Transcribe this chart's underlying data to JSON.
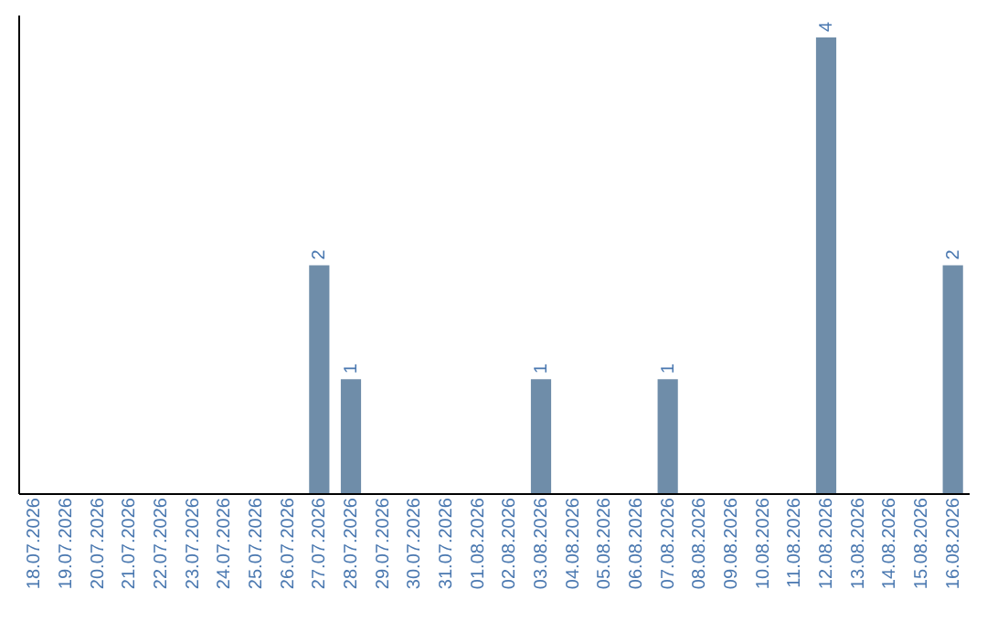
{
  "chart_data": {
    "type": "bar",
    "categories": [
      "18.07.2026",
      "19.07.2026",
      "20.07.2026",
      "21.07.2026",
      "22.07.2026",
      "23.07.2026",
      "24.07.2026",
      "25.07.2026",
      "26.07.2026",
      "27.07.2026",
      "28.07.2026",
      "29.07.2026",
      "30.07.2026",
      "31.07.2026",
      "01.08.2026",
      "02.08.2026",
      "03.08.2026",
      "04.08.2026",
      "05.08.2026",
      "06.08.2026",
      "07.08.2026",
      "08.08.2026",
      "09.08.2026",
      "10.08.2026",
      "11.08.2026",
      "12.08.2026",
      "13.08.2026",
      "14.08.2026",
      "15.08.2026",
      "16.08.2026"
    ],
    "values": [
      0,
      0,
      0,
      0,
      0,
      0,
      0,
      0,
      0,
      2,
      1,
      0,
      0,
      0,
      0,
      0,
      1,
      0,
      0,
      0,
      1,
      0,
      0,
      0,
      0,
      4,
      0,
      0,
      0,
      2
    ],
    "value_labels": [
      null,
      null,
      null,
      null,
      null,
      null,
      null,
      null,
      null,
      "2",
      "1",
      null,
      null,
      null,
      null,
      null,
      "1",
      null,
      null,
      null,
      "1",
      null,
      null,
      null,
      null,
      "4",
      null,
      null,
      null,
      "2"
    ],
    "color": "#6f8da9",
    "ylim": [
      0,
      4.2
    ],
    "tick_labels": "x"
  }
}
